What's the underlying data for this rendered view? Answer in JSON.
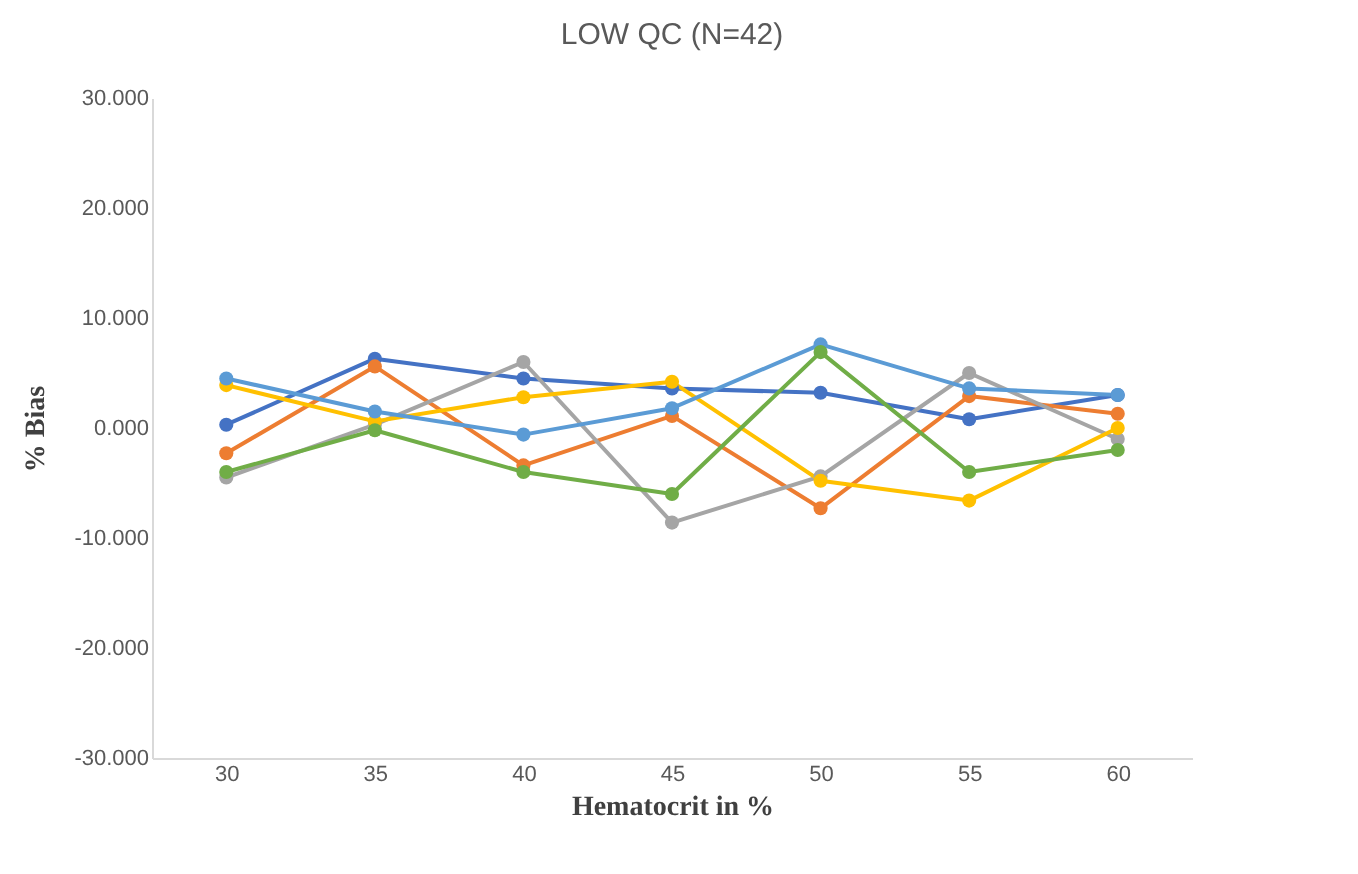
{
  "chart_data": {
    "type": "line",
    "title": "LOW  QC (N=42)",
    "xlabel": "Hematocrit in %",
    "ylabel": "% Bias",
    "categories": [
      "30",
      "35",
      "40",
      "45",
      "50",
      "55",
      "60"
    ],
    "series": [
      {
        "color": "#4472c4",
        "values": [
          0.3,
          6.3,
          4.5,
          3.6,
          3.2,
          0.8,
          3.0
        ]
      },
      {
        "color": "#ed7d31",
        "values": [
          -2.3,
          5.6,
          -3.4,
          1.1,
          -7.3,
          2.9,
          1.3
        ]
      },
      {
        "color": "#a5a5a5",
        "values": [
          -4.5,
          0.3,
          6.0,
          -8.6,
          -4.4,
          5.0,
          -1.0
        ]
      },
      {
        "color": "#ffc000",
        "values": [
          3.9,
          0.6,
          2.8,
          4.2,
          -4.8,
          -6.6,
          0.0
        ]
      },
      {
        "color": "#5b9bd5",
        "values": [
          4.5,
          1.5,
          -0.6,
          1.8,
          7.6,
          3.6,
          3.0
        ]
      },
      {
        "color": "#70ad47",
        "values": [
          -4.0,
          -0.2,
          -4.0,
          -6.0,
          6.9,
          -4.0,
          -2.0
        ]
      }
    ],
    "ylim": [
      -30,
      30
    ],
    "yticks": [
      {
        "value": -30,
        "label": "-30.000"
      },
      {
        "value": -20,
        "label": "-20.000"
      },
      {
        "value": -10,
        "label": "-10.000"
      },
      {
        "value": 0,
        "label": "0.000"
      },
      {
        "value": 10,
        "label": "10.000"
      },
      {
        "value": 20,
        "label": "20.000"
      },
      {
        "value": 30,
        "label": "30.000"
      }
    ],
    "grid": false,
    "marker": "circle",
    "line_style": "solid"
  }
}
